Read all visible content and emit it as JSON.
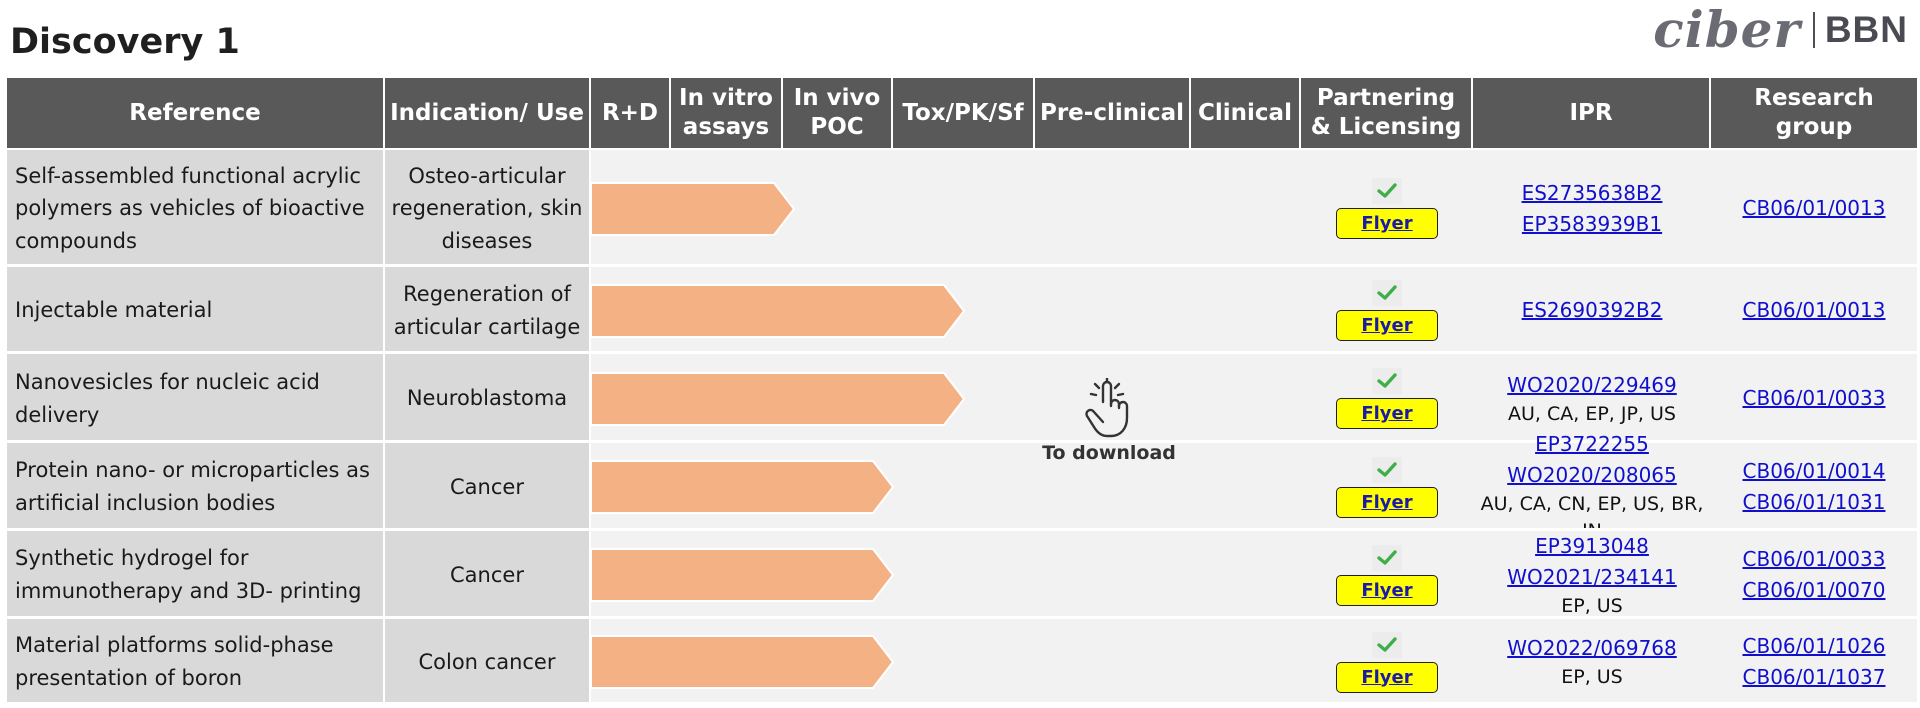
{
  "page_title": "Discovery 1",
  "logo": {
    "left": "ciber",
    "right": "BBN"
  },
  "headers": {
    "reference": "Reference",
    "indication": "Indication/ Use",
    "rd": "R+D",
    "invitro": "In vitro assays",
    "invivo": "In vivo POC",
    "tox": "Tox/PK/Sf",
    "preclinical": "Pre-clinical",
    "clinical": "Clinical",
    "partnering": "Partnering & Licensing",
    "ipr": "IPR",
    "research_group": "Research group"
  },
  "flyer_label": "Flyer",
  "download_label": "To download",
  "colors": {
    "header_bg": "#595959",
    "row_bg": "#d9d9d9",
    "stage_bg": "#f2f2f2",
    "arrow": "#f4b183",
    "flyer_bg": "#ffff00",
    "link": "#1010cc"
  },
  "rows": [
    {
      "reference": "Self-assembled functional acrylic polymers as vehicles of bioactive compounds",
      "indication": "Osteo-articular regeneration, skin diseases",
      "stage": "In vitro assays",
      "progress": 0.26,
      "ipr_links": [
        "ES2735638B2",
        "EP3583939B1"
      ],
      "ipr_note": "",
      "research_groups": [
        "CB06/01/0013"
      ]
    },
    {
      "reference": "Injectable material",
      "indication": "Regeneration of articular cartilage",
      "stage": "In vivo POC",
      "progress": 0.5,
      "ipr_links": [
        "ES2690392B2"
      ],
      "ipr_note": "",
      "research_groups": [
        "CB06/01/0013"
      ]
    },
    {
      "reference": "Nanovesicles for nucleic acid delivery",
      "indication": "Neuroblastoma",
      "stage": "In vivo POC",
      "progress": 0.5,
      "ipr_links": [
        "WO2020/229469"
      ],
      "ipr_note": "AU, CA, EP, JP, US",
      "research_groups": [
        "CB06/01/0033"
      ]
    },
    {
      "reference": "Protein nano- or microparticles as artificial inclusion bodies",
      "indication": "Cancer",
      "stage": "In vivo POC",
      "progress": 0.4,
      "ipr_links": [
        "EP3722255",
        "WO2020/208065"
      ],
      "ipr_note": "AU, CA, CN, EP, US, BR, IN",
      "research_groups": [
        "CB06/01/0014",
        "CB06/01/1031"
      ]
    },
    {
      "reference": "Synthetic hydrogel for immunotherapy and 3D- printing",
      "indication": "Cancer",
      "stage": "In vivo POC",
      "progress": 0.4,
      "ipr_links": [
        "EP3913048",
        "WO2021/234141"
      ],
      "ipr_note": "EP, US",
      "research_groups": [
        "CB06/01/0033",
        "CB06/01/0070"
      ]
    },
    {
      "reference": "Material platforms solid-phase presentation of boron",
      "indication": "Colon cancer",
      "stage": "In vivo POC",
      "progress": 0.4,
      "ipr_links": [
        "WO2022/069768"
      ],
      "ipr_note": "EP, US",
      "research_groups": [
        "CB06/01/1026",
        "CB06/01/1037"
      ]
    }
  ]
}
